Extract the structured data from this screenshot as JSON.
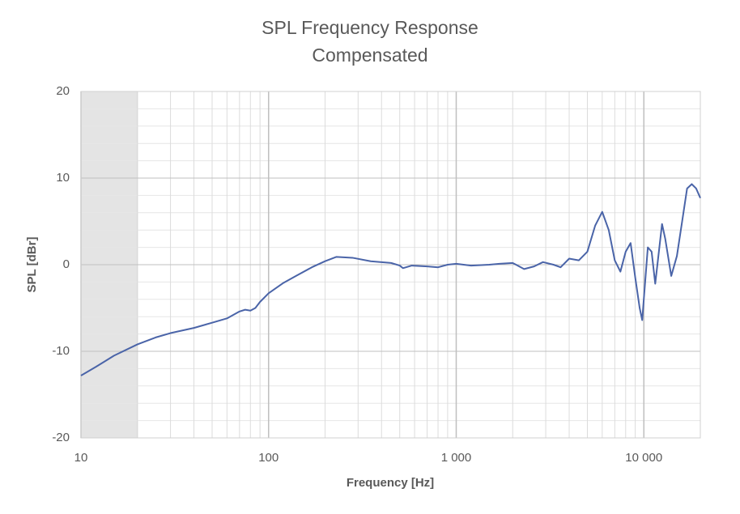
{
  "chart_data": {
    "type": "line",
    "title": "SPL Frequency Response",
    "subtitle": "Compensated",
    "x_label": "Frequency [Hz]",
    "y_label": "SPL [dBr]",
    "x_scale": "log",
    "xlim": [
      10,
      20000
    ],
    "ylim": [
      -20,
      20
    ],
    "xticks": [
      10,
      100,
      {
        "value": 1000,
        "label": "1 000"
      },
      {
        "value": 10000,
        "label": "10 000"
      }
    ],
    "yticks": [
      -20,
      -10,
      0,
      10,
      20
    ],
    "minor_xticks": [
      20,
      30,
      40,
      50,
      60,
      70,
      80,
      90,
      200,
      300,
      400,
      500,
      600,
      700,
      800,
      900,
      2000,
      3000,
      4000,
      5000,
      6000,
      7000,
      8000,
      9000
    ],
    "minor_yticks": [
      -18,
      -16,
      -14,
      -12,
      -8,
      -6,
      -4,
      -2,
      2,
      4,
      6,
      8,
      12,
      14,
      16,
      18
    ],
    "grid": true,
    "shaded_xrange": [
      10,
      20
    ],
    "shaded_color": "#e4e4e4",
    "series": [
      {
        "name": "SPL",
        "color": "#4a64a8",
        "x": [
          10,
          12,
          15,
          20,
          25,
          30,
          40,
          50,
          60,
          70,
          75,
          80,
          85,
          90,
          100,
          120,
          140,
          170,
          200,
          230,
          280,
          350,
          450,
          500,
          520,
          580,
          700,
          800,
          900,
          1000,
          1200,
          1500,
          1700,
          2000,
          2300,
          2600,
          2900,
          3300,
          3600,
          4000,
          4500,
          5000,
          5500,
          6000,
          6500,
          7000,
          7500,
          8000,
          8500,
          9000,
          9500,
          9800,
          10500,
          11000,
          11500,
          12500,
          13000,
          14000,
          15000,
          16000,
          17000,
          18000,
          19000,
          20000
        ],
        "values": [
          -12.8,
          -11.8,
          -10.5,
          -9.2,
          -8.4,
          -7.9,
          -7.3,
          -6.7,
          -6.2,
          -5.4,
          -5.2,
          -5.3,
          -5.0,
          -4.3,
          -3.3,
          -2.1,
          -1.3,
          -0.3,
          0.4,
          0.9,
          0.8,
          0.4,
          0.2,
          -0.1,
          -0.4,
          -0.1,
          -0.2,
          -0.3,
          0.0,
          0.1,
          -0.1,
          0.0,
          0.1,
          0.2,
          -0.5,
          -0.2,
          0.3,
          0.0,
          -0.3,
          0.7,
          0.5,
          1.5,
          4.5,
          6.1,
          4.0,
          0.5,
          -0.8,
          1.5,
          2.5,
          -1.5,
          -5.0,
          -6.4,
          2.0,
          1.5,
          -2.2,
          4.7,
          3.0,
          -1.3,
          1.0,
          5.0,
          8.8,
          9.3,
          8.8,
          7.7
        ]
      }
    ]
  }
}
